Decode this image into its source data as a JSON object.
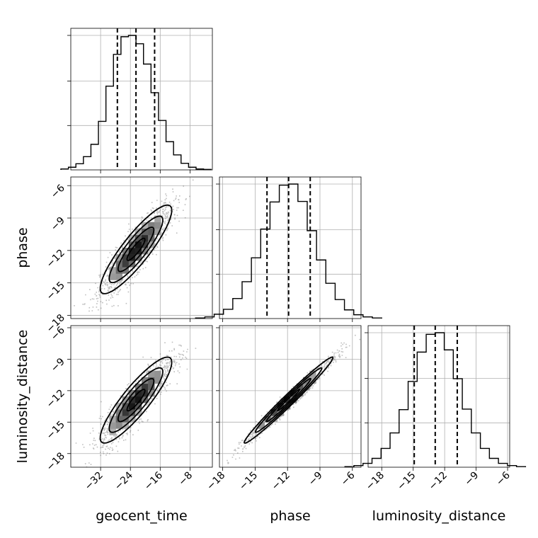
{
  "chart_data": {
    "type": "corner",
    "parameters": [
      {
        "key": "geocent_time",
        "label": "geocent_time",
        "mean": -22.5,
        "std": 4.8,
        "range": [
          -40,
          -2
        ],
        "ticks": [
          -32,
          -24,
          -16,
          -8
        ],
        "quantiles": [
          -27.5,
          -22.5,
          -17.5
        ]
      },
      {
        "key": "phase",
        "label": "phase",
        "mean": -11.9,
        "std": 2.05,
        "range": [
          -18.3,
          -5.2
        ],
        "ticks": [
          -18,
          -15,
          -12,
          -9,
          -6
        ],
        "quantiles": [
          -13.9,
          -11.9,
          -9.9
        ]
      },
      {
        "key": "luminosity_distance",
        "label": "luminosity_distance",
        "mean": -12.9,
        "std": 2.05,
        "range": [
          -19.3,
          -5.8
        ],
        "ticks": [
          -18,
          -15,
          -12,
          -9,
          -6
        ],
        "quantiles": [
          -14.9,
          -12.9,
          -10.8
        ]
      }
    ],
    "histograms": [
      {
        "parameter": "geocent_time",
        "counts": [
          2,
          6,
          14,
          30,
          58,
          110,
          190,
          262,
          302,
          305,
          286,
          240,
          175,
          112,
          64,
          34,
          15,
          6,
          2,
          1
        ]
      },
      {
        "parameter": "phase",
        "counts": [
          1,
          3,
          8,
          17,
          37,
          68,
          112,
          165,
          215,
          246,
          248,
          216,
          162,
          108,
          65,
          35,
          16,
          7,
          3,
          1
        ]
      },
      {
        "parameter": "luminosity_distance",
        "counts": [
          1,
          3,
          7,
          16,
          34,
          62,
          104,
          155,
          208,
          240,
          243,
          212,
          160,
          105,
          62,
          34,
          16,
          7,
          3,
          1
        ]
      }
    ],
    "correlations": {
      "geocent_time|phase": 0.88,
      "geocent_time|luminosity_distance": 0.88,
      "phase|luminosity_distance": 0.985
    },
    "quantile_style": "dashed",
    "grid": true
  }
}
